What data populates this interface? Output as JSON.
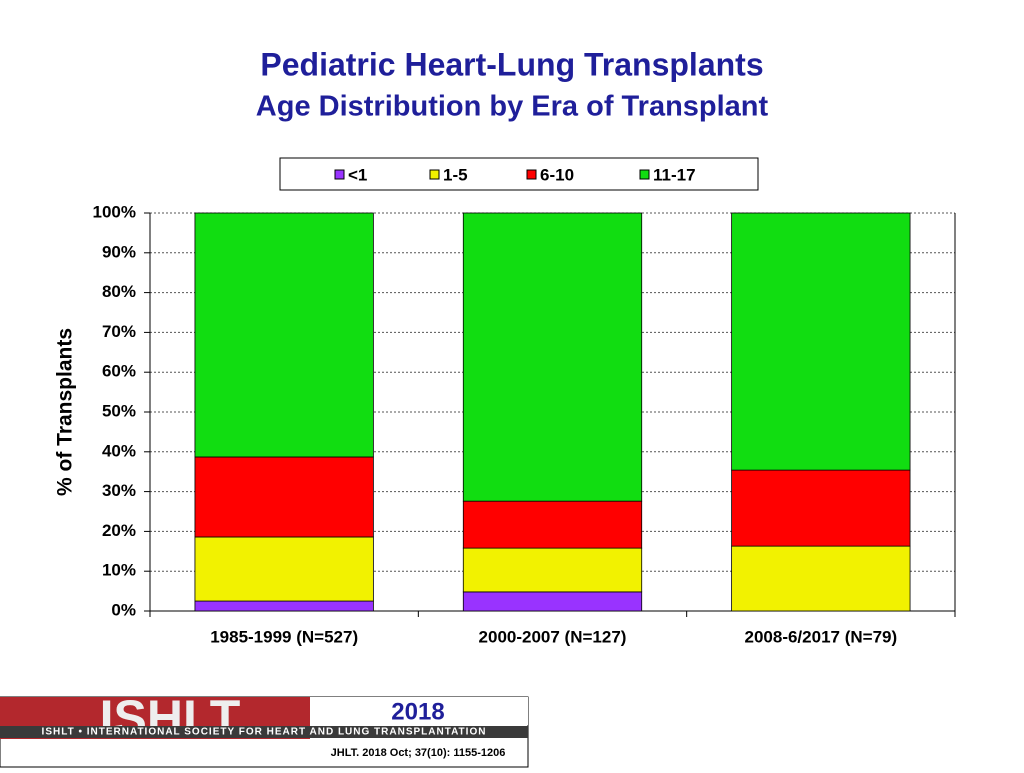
{
  "chart_data": {
    "type": "stacked_bar",
    "title": "Pediatric Heart-Lung Transplants",
    "subtitle": "Age Distribution by Era of Transplant",
    "y_label": "% of Transplants",
    "categories": [
      "1985-1999 (N=527)",
      "2000-2007 (N=127)",
      "2008-6/2017 (N=79)"
    ],
    "series": [
      {
        "name": "<1",
        "color": "#9933ff",
        "values": [
          2.5,
          4.8,
          0
        ]
      },
      {
        "name": "1-5",
        "color": "#f2f200",
        "values": [
          16.1,
          11.0,
          16.3
        ]
      },
      {
        "name": "6-10",
        "color": "#ff0000",
        "values": [
          20.1,
          11.8,
          19.1
        ]
      },
      {
        "name": "11-17",
        "color": "#11dd11",
        "values": [
          61.3,
          72.4,
          64.6
        ]
      }
    ],
    "ylim": [
      0,
      100
    ],
    "yticks": [
      {
        "value": 0,
        "label": "0%"
      },
      {
        "value": 10,
        "label": "10%"
      },
      {
        "value": 20,
        "label": "20%"
      },
      {
        "value": 30,
        "label": "30%"
      },
      {
        "value": 40,
        "label": "40%"
      },
      {
        "value": 50,
        "label": "50%"
      },
      {
        "value": 60,
        "label": "60%"
      },
      {
        "value": 70,
        "label": "70%"
      },
      {
        "value": 80,
        "label": "80%"
      },
      {
        "value": 90,
        "label": "90%"
      },
      {
        "value": 100,
        "label": "100%"
      }
    ],
    "grid": true
  },
  "footer": {
    "logo": "ISHLT",
    "society": "ISHLT • INTERNATIONAL SOCIETY FOR HEART AND LUNG TRANSPLANTATION",
    "year": "2018",
    "citation": "JHLT. 2018 Oct; 37(10): 1155-1206"
  }
}
